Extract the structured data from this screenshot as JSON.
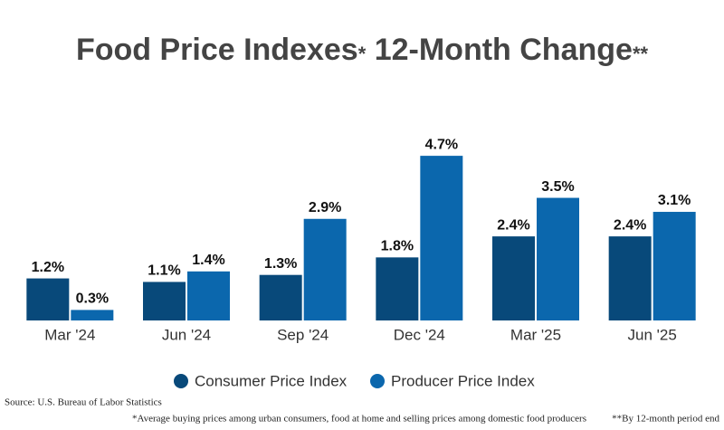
{
  "chart_data": {
    "type": "bar",
    "title": [
      "Food Price Indexes",
      "*",
      " 12-Month Change",
      "**"
    ],
    "categories": [
      "Mar '24",
      "Jun '24",
      "Sep '24",
      "Dec '24",
      "Mar '25",
      "Jun '25"
    ],
    "series": [
      {
        "name": "Consumer Price Index",
        "color": "#08497a",
        "values": [
          1.2,
          1.1,
          1.3,
          1.8,
          2.4,
          2.4
        ],
        "value_labels": [
          "1.2%",
          "1.1%",
          "1.3%",
          "1.8%",
          "2.4%",
          "2.4%"
        ]
      },
      {
        "name": "Producer Price Index",
        "color": "#0b67ad",
        "values": [
          0.3,
          1.4,
          2.9,
          4.7,
          3.5,
          3.1
        ],
        "value_labels": [
          "0.3%",
          "1.4%",
          "2.9%",
          "4.7%",
          "3.5%",
          "3.1%"
        ]
      }
    ],
    "ylim": [
      0,
      5
    ],
    "source": "Source: U.S. Bureau of Labor Statistics",
    "footnotes": [
      "*Average buying prices among urban consumers, food at home and selling prices among domestic food producers",
      "**By 12-month period end"
    ]
  }
}
